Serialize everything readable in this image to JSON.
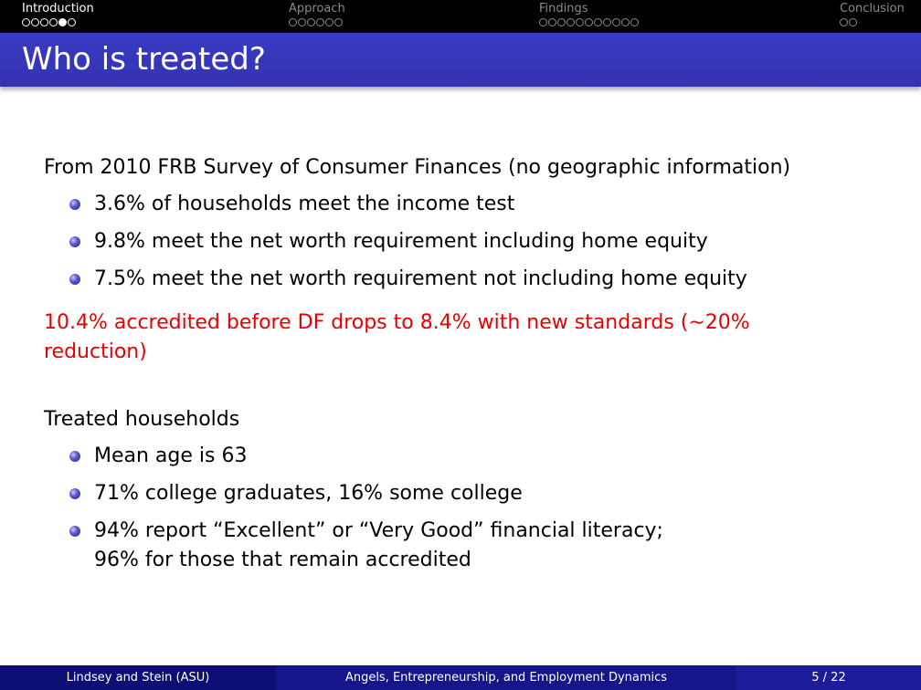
{
  "nav": {
    "sections": [
      {
        "label": "Introduction",
        "dots": 6,
        "current": 4,
        "active": true
      },
      {
        "label": "Approach",
        "dots": 6,
        "current": -1,
        "active": false
      },
      {
        "label": "Findings",
        "dots": 11,
        "current": -1,
        "active": false
      },
      {
        "label": "Conclusion",
        "dots": 2,
        "current": -1,
        "active": false
      }
    ]
  },
  "slide": {
    "title": "Who is treated?",
    "intro": "From 2010 FRB Survey of Consumer Finances (no geographic information)",
    "bullets1": [
      "3.6% of households meet the income test",
      "9.8% meet the net worth requirement including home equity",
      "7.5% meet the net worth requirement not including home equity"
    ],
    "highlight_line1": "10.4% accredited before DF drops to 8.4% with new standards (∼20%",
    "highlight_line2": "reduction)",
    "treated_heading": "Treated households",
    "bullets2": [
      "Mean age is 63",
      "71% college graduates, 16% some college",
      "94% report “Excellent” or “Very Good” financial literacy;"
    ],
    "bullets2_continuation": "96% for those that remain accredited"
  },
  "footer": {
    "authors": "Lindsey and Stein (ASU)",
    "title": "Angels, Entrepreneurship, and Employment Dynamics",
    "page": "5 / 22"
  },
  "colors": {
    "title_bar": "#3535b8",
    "footer": "#16168a",
    "highlight": "#e60000",
    "navbar": "#000000"
  }
}
